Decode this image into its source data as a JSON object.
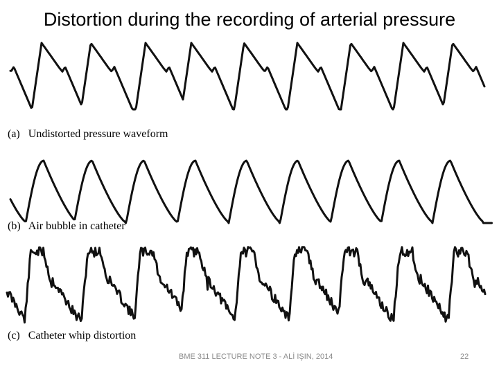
{
  "slide": {
    "title": "Distortion during the recording of arterial pressure",
    "panels": [
      {
        "id": "a",
        "caption": "(a)   Undistorted pressure waveform"
      },
      {
        "id": "b",
        "caption": "(b)   Air bubble in catheter"
      },
      {
        "id": "c",
        "caption": "(c)   Catheter whip distortion"
      }
    ],
    "footer": "BME 311 LECTURE NOTE 3 - ALİ IŞIN, 2014",
    "page_number": "22"
  },
  "colors": {
    "waveform": "#111111",
    "footer": "#8a8a8a"
  }
}
